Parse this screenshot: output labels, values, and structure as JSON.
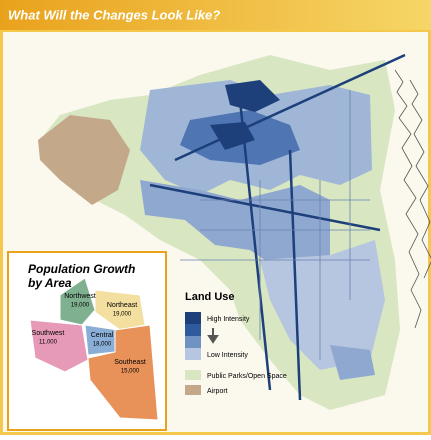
{
  "header": {
    "title": "What Will the Changes Look Like?"
  },
  "inset": {
    "title": "Population Growth by Area",
    "regions": [
      {
        "name": "Northwest",
        "population": "19,000"
      },
      {
        "name": "Northeast",
        "population": "19,000"
      },
      {
        "name": "Southwest",
        "population": "11,000"
      },
      {
        "name": "Central",
        "population": "18,000"
      },
      {
        "name": "Southeast",
        "population": "15,000"
      }
    ]
  },
  "legend": {
    "title": "Land Use",
    "high": "High Intensity",
    "low": "Low Intensity",
    "parks": "Public Parks/Open Space",
    "airport": "Airport"
  }
}
